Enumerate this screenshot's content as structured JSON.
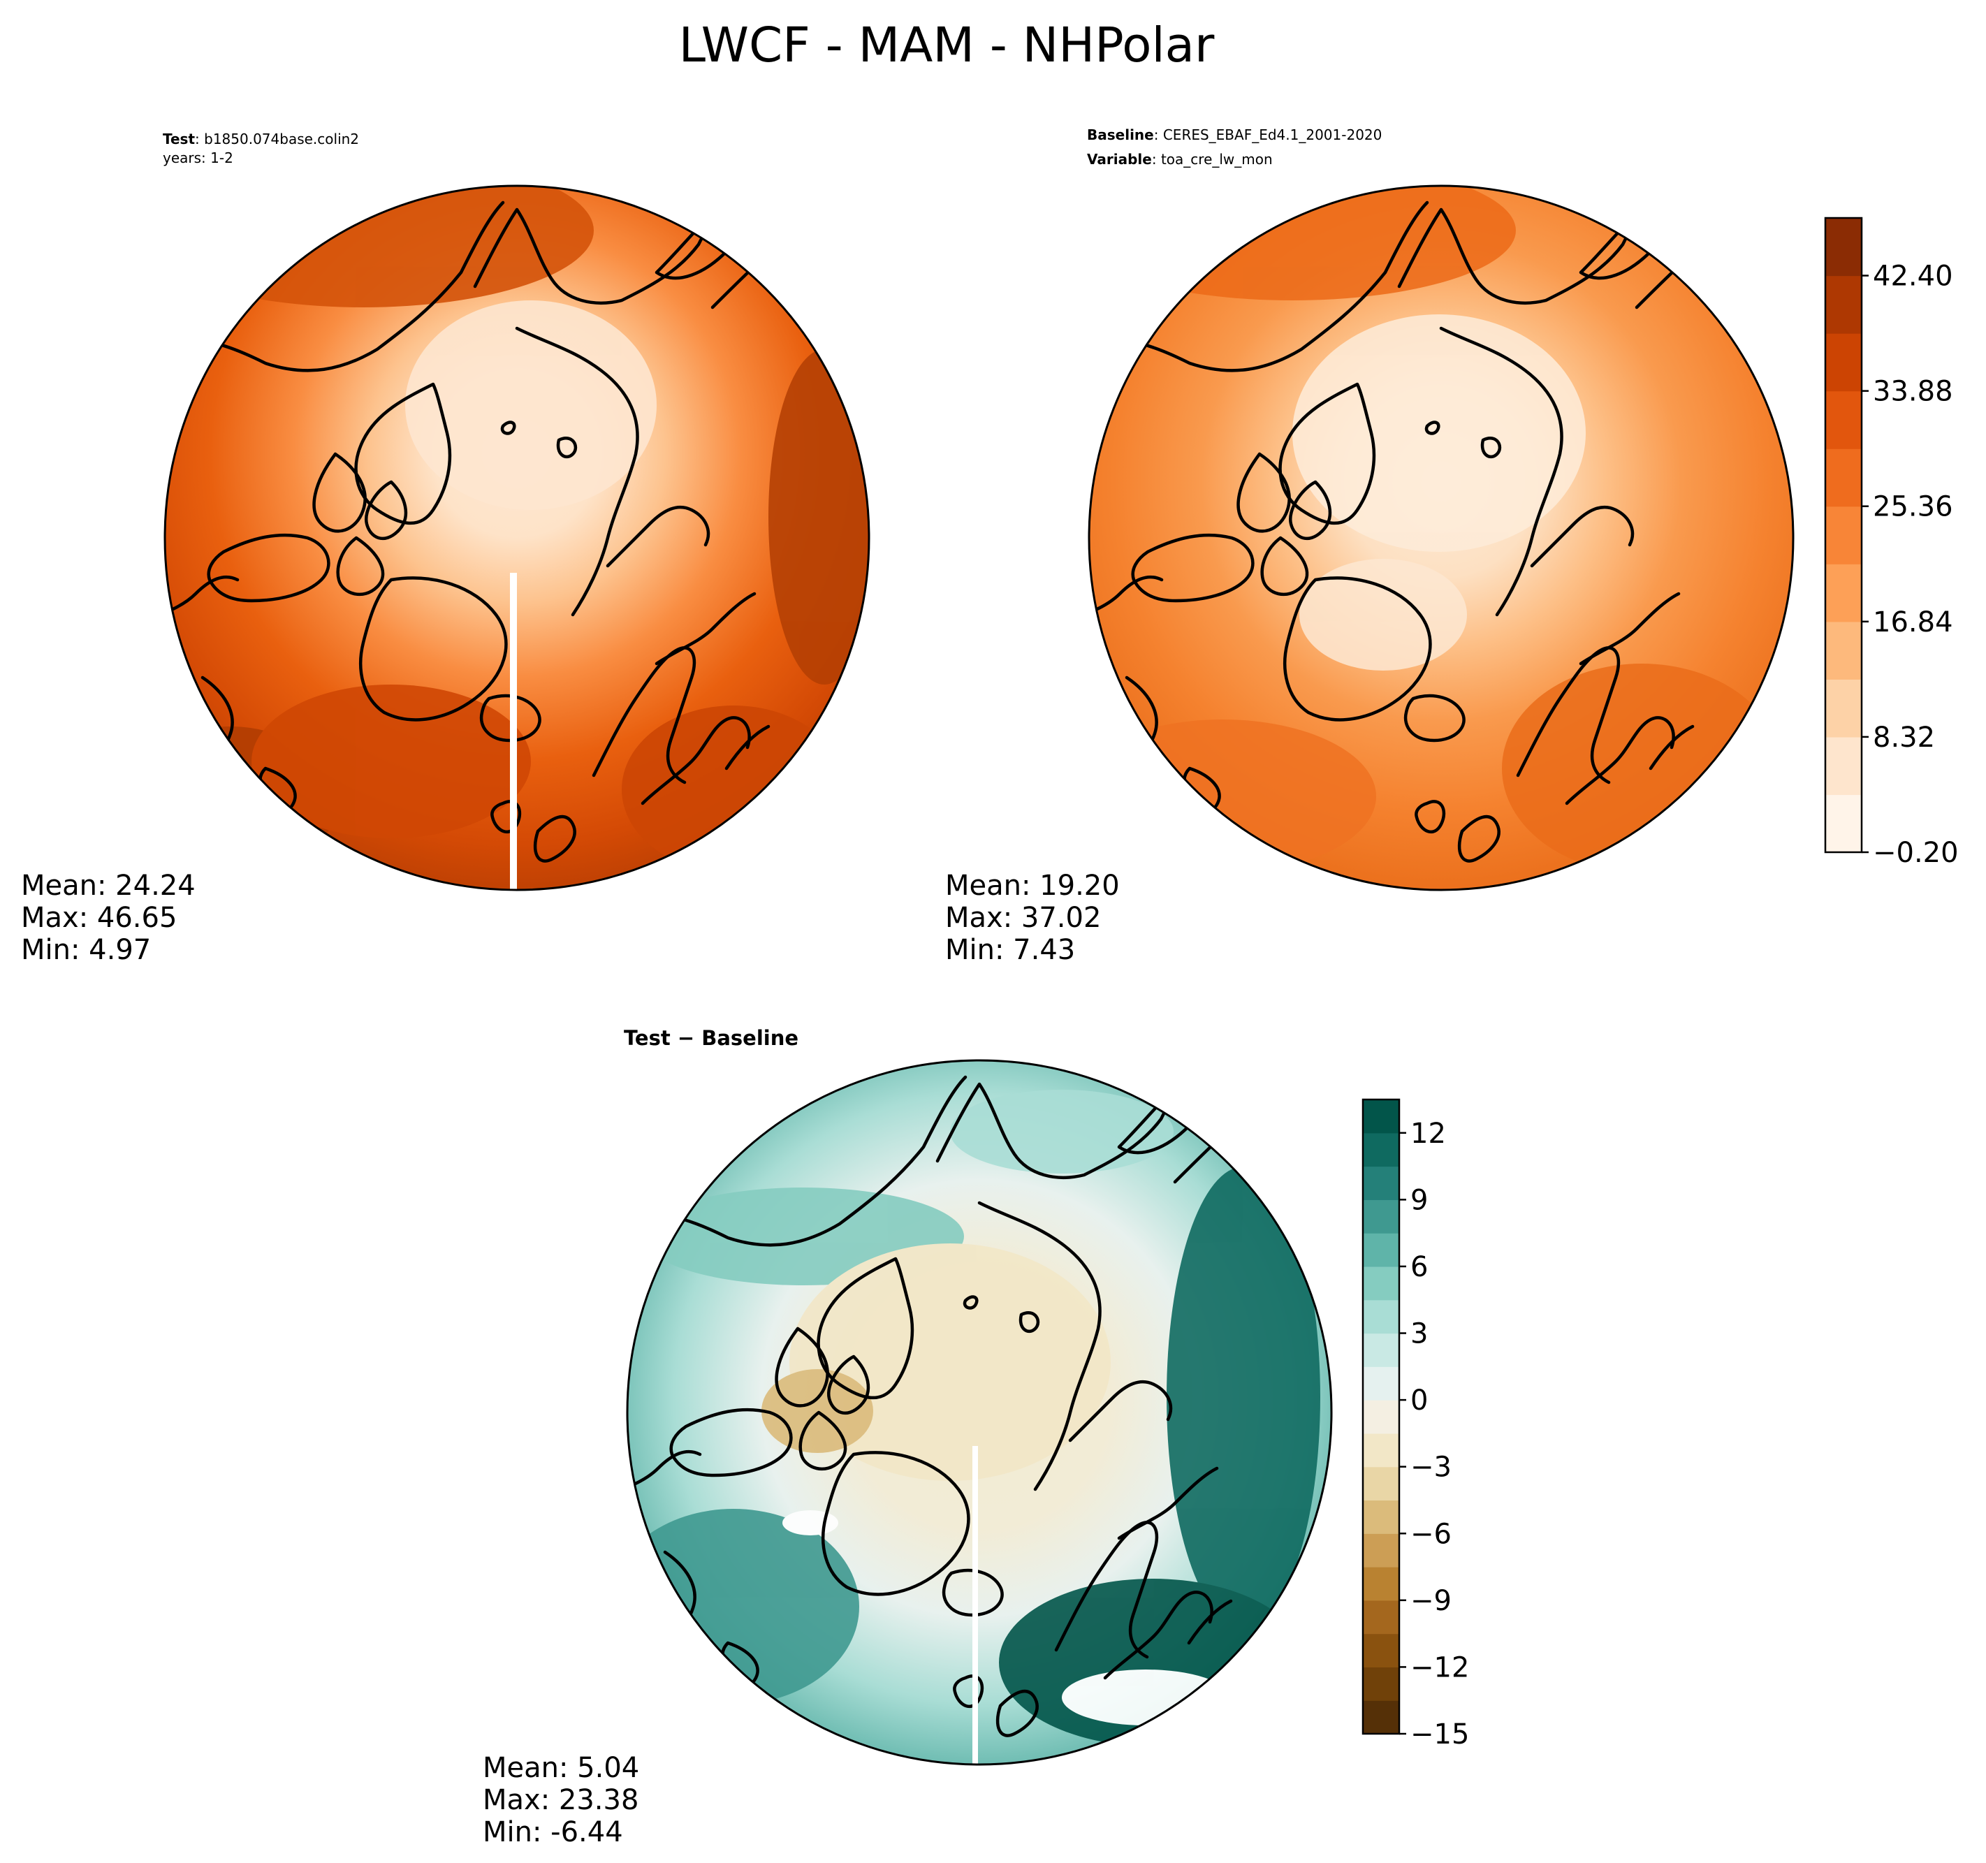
{
  "figure": {
    "title": "LWCF - MAM - NHPolar"
  },
  "panels": [
    {
      "id": "test",
      "header_lines": [
        {
          "label": "Test",
          "value": "b1850.074base.colin2"
        },
        {
          "label": "",
          "value": "years: 1-2"
        }
      ],
      "stats": {
        "mean": "Mean: 24.24",
        "max": "Max: 46.65",
        "min": "Min:  4.97"
      }
    },
    {
      "id": "baseline",
      "header_lines": [
        {
          "label": "Baseline",
          "value": "CERES_EBAF_Ed4.1_2001-2020"
        },
        {
          "label": "Variable",
          "value": "toa_cre_lw_mon"
        }
      ],
      "stats": {
        "mean": "Mean: 19.20",
        "max": "Max: 37.02",
        "min": "Min:  7.43"
      }
    },
    {
      "id": "difference",
      "header_lines": [
        {
          "label": "Test − Baseline",
          "value": ""
        }
      ],
      "stats": {
        "mean": "Mean:  5.04",
        "max": "Max: 23.38",
        "min": "Min: -6.44"
      }
    }
  ],
  "colorbars": [
    {
      "id": "main",
      "colormap": "Oranges",
      "levels": [
        -0.2,
        4.06,
        8.32,
        12.58,
        16.84,
        21.1,
        25.36,
        29.62,
        33.88,
        38.14,
        42.4,
        46.66
      ],
      "tick_labels": [
        "−0.20",
        "8.32",
        "16.84",
        "25.36",
        "33.88",
        "42.40"
      ],
      "tick_values": [
        -0.2,
        8.32,
        16.84,
        25.36,
        33.88,
        42.4
      ],
      "colors": [
        "#fff4e9",
        "#fee5cd",
        "#fdd2a7",
        "#fdb97c",
        "#fda057",
        "#f88537",
        "#ef6c1e",
        "#e2560d",
        "#cc4403",
        "#ae3802",
        "#8b2c04"
      ]
    },
    {
      "id": "diff",
      "colormap": "BrBG",
      "levels": [
        -15,
        -13.5,
        -12,
        -10.5,
        -9,
        -7.5,
        -6,
        -4.5,
        -3,
        -1.5,
        0,
        1.5,
        3,
        4.5,
        6,
        7.5,
        9,
        10.5,
        12,
        13.5
      ],
      "tick_labels": [
        "−15",
        "−12",
        "−9",
        "−6",
        "−3",
        "0",
        "3",
        "6",
        "9",
        "12"
      ],
      "tick_values": [
        -15,
        -12,
        -9,
        -6,
        -3,
        0,
        3,
        6,
        9,
        12
      ],
      "colors": [
        "#553007",
        "#704109",
        "#8a520f",
        "#a4671e",
        "#b98231",
        "#cc9e55",
        "#dbbb7b",
        "#e9d6a6",
        "#f2e7c7",
        "#f4efe2",
        "#e5f1ef",
        "#c9e9e4",
        "#a9ddd5",
        "#85ccc0",
        "#5fb4a9",
        "#3f9990",
        "#248079",
        "#0f6a60",
        "#02554a"
      ]
    }
  ]
}
